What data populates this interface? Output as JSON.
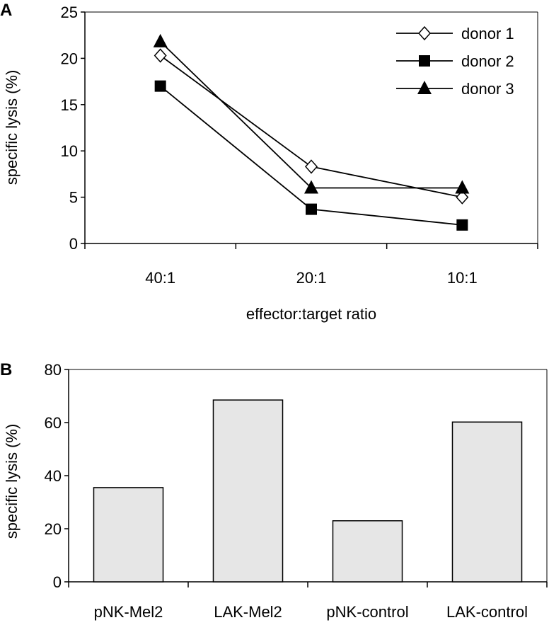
{
  "chart_data": [
    {
      "panel": "A",
      "type": "line",
      "title": "",
      "xlabel": "effector:target ratio",
      "ylabel": "specific lysis (%)",
      "categories": [
        "40:1",
        "20:1",
        "10:1"
      ],
      "ylim": [
        0,
        25
      ],
      "yticks": [
        0,
        5,
        10,
        15,
        20,
        25
      ],
      "grid": false,
      "legend_position": "top-right",
      "series": [
        {
          "name": "donor 1",
          "marker": "open-diamond",
          "values": [
            20.3,
            8.3,
            5.0
          ]
        },
        {
          "name": "donor 2",
          "marker": "filled-square",
          "values": [
            17.0,
            3.7,
            2.0
          ]
        },
        {
          "name": "donor 3",
          "marker": "filled-triangle",
          "values": [
            21.8,
            6.0,
            6.0
          ]
        }
      ]
    },
    {
      "panel": "B",
      "type": "bar",
      "title": "",
      "xlabel": "",
      "ylabel": "specific lysis (%)",
      "categories": [
        "pNK-Mel2",
        "LAK-Mel2",
        "pNK-control",
        "LAK-control"
      ],
      "values": [
        35.5,
        68.5,
        23.0,
        60.2
      ],
      "ylim": [
        0,
        80
      ],
      "yticks": [
        0,
        20,
        40,
        60,
        80
      ],
      "grid": false,
      "bar_color": "#e6e6e6"
    }
  ]
}
